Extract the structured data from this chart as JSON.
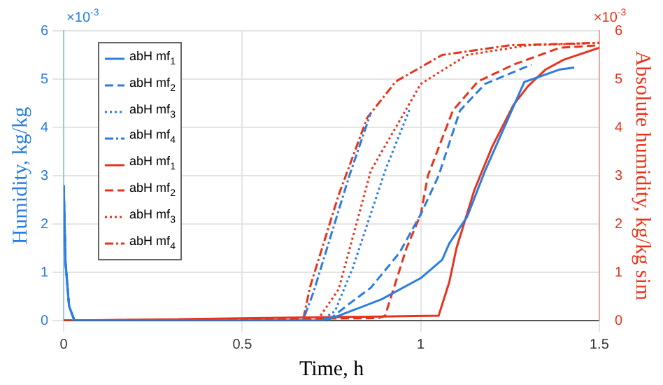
{
  "chart_data": {
    "type": "line",
    "xlabel": "Time, h",
    "ylabel": "Humidity, kg/kg",
    "y2label": "Absolute humidity, kg/kg sim",
    "annotations": [
      "×10$^{-3}$",
      "×10$^{-3}$"
    ],
    "xlim": [
      0,
      1.5
    ],
    "xticks": [
      0,
      0.5,
      1,
      1.5
    ],
    "ylim": [
      0,
      6
    ],
    "yticks": [
      0,
      1,
      2,
      3,
      4,
      5,
      6
    ],
    "y2lim": [
      0,
      6
    ],
    "y2ticks": [
      0,
      1,
      2,
      3,
      4,
      5,
      6
    ],
    "grid": true,
    "legend": "top left",
    "marker": "none",
    "series": [
      {
        "name": "abH mf$_{1}$",
        "color": "#2a7de1",
        "line_style": "solid",
        "x": [
          0,
          0.005,
          0.015,
          0.03,
          0.5,
          0.72,
          0.77,
          0.89,
          1.0,
          1.06,
          1.08,
          1.13,
          1.18,
          1.29,
          1.39,
          1.43
        ],
        "values": [
          2.8,
          1.2,
          0.3,
          0,
          0,
          0,
          0.1,
          0.44,
          0.88,
          1.26,
          1.6,
          2.15,
          3.1,
          4.94,
          5.2,
          5.24
        ]
      },
      {
        "name": "abH mf$_{2}$",
        "color": "#2a7de1",
        "line_style": "dashed",
        "x": [
          0,
          0.005,
          0.015,
          0.03,
          0.5,
          0.74,
          0.8,
          0.86,
          0.94,
          1.0,
          1.05,
          1.11,
          1.18,
          1.31
        ],
        "values": [
          2.8,
          1.2,
          0.3,
          0,
          0,
          0,
          0.35,
          0.68,
          1.4,
          2.2,
          3.0,
          4.35,
          4.9,
          5.3
        ]
      },
      {
        "name": "abH mf$_{3}$",
        "color": "#2a7de1",
        "line_style": "dotted",
        "x": [
          0,
          0.005,
          0.015,
          0.03,
          0.5,
          0.72,
          0.76,
          0.81,
          0.9,
          0.97
        ],
        "values": [
          2.8,
          1.2,
          0.3,
          0,
          0,
          0,
          0.2,
          1.1,
          3.1,
          4.4
        ]
      },
      {
        "name": "abH mf$_{4}$",
        "color": "#2a7de1",
        "line_style": "dashdot",
        "x": [
          0,
          0.005,
          0.015,
          0.03,
          0.5,
          0.67,
          0.7,
          0.75,
          0.8,
          0.86
        ],
        "values": [
          2.8,
          1.2,
          0.3,
          0,
          0,
          0,
          0.6,
          1.8,
          3.0,
          4.3
        ]
      },
      {
        "name": "abH mf$_{1}$",
        "color": "#e8331c",
        "line_style": "solid",
        "axis": "y2",
        "x": [
          0,
          1.05,
          1.08,
          1.1,
          1.15,
          1.2,
          1.26,
          1.3,
          1.35,
          1.4,
          1.5
        ],
        "values": [
          0,
          0.1,
          0.8,
          1.5,
          2.7,
          3.6,
          4.47,
          4.85,
          5.2,
          5.4,
          5.65
        ]
      },
      {
        "name": "abH mf$_{2}$",
        "color": "#e8331c",
        "line_style": "dashed",
        "axis": "y2",
        "x": [
          0,
          0.88,
          0.9,
          0.96,
          1.0,
          1.02,
          1.09,
          1.16,
          1.26,
          1.39,
          1.5
        ],
        "values": [
          0,
          0.05,
          0.1,
          1.5,
          2.2,
          3.0,
          4.35,
          4.95,
          5.3,
          5.65,
          5.7
        ]
      },
      {
        "name": "abH mf$_{3}$",
        "color": "#e8331c",
        "line_style": "dotted",
        "axis": "y2",
        "x": [
          0,
          0.71,
          0.77,
          0.86,
          0.93,
          1.0,
          1.13,
          1.3,
          1.5
        ],
        "values": [
          0,
          0,
          0.65,
          3.1,
          4.0,
          4.9,
          5.5,
          5.7,
          5.75
        ]
      },
      {
        "name": "abH mf$_{4}$",
        "color": "#e8331c",
        "line_style": "dashdot",
        "axis": "y2",
        "x": [
          0,
          0.67,
          0.69,
          0.77,
          0.85,
          0.93,
          1.06,
          1.25,
          1.5
        ],
        "values": [
          0,
          0,
          0.7,
          2.6,
          4.2,
          4.95,
          5.5,
          5.7,
          5.75
        ]
      }
    ]
  }
}
